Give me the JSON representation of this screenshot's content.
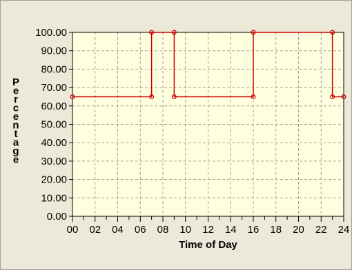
{
  "chart_data": {
    "type": "line",
    "title": "",
    "xlabel": "Time of Day",
    "ylabel": "Percentage",
    "xlim": [
      0,
      24
    ],
    "ylim": [
      0,
      100
    ],
    "x_ticks": [
      "00",
      "02",
      "04",
      "06",
      "08",
      "10",
      "12",
      "14",
      "16",
      "18",
      "20",
      "22",
      "24"
    ],
    "y_ticks": [
      "0.00",
      "10.00",
      "20.00",
      "30.00",
      "40.00",
      "50.00",
      "60.00",
      "70.00",
      "80.00",
      "90.00",
      "100.00"
    ],
    "grid": true,
    "line_style": "step",
    "series": [
      {
        "x": [
          0,
          7,
          7,
          9,
          9,
          16,
          16,
          23,
          23,
          24
        ],
        "y": [
          65,
          65,
          100,
          100,
          65,
          65,
          100,
          100,
          65,
          65
        ],
        "color": "#cc0000"
      }
    ],
    "colors": {
      "plot_background": "#ffffe0",
      "panel_background": "#ece9d8",
      "grid": "#a0a0a0"
    }
  }
}
